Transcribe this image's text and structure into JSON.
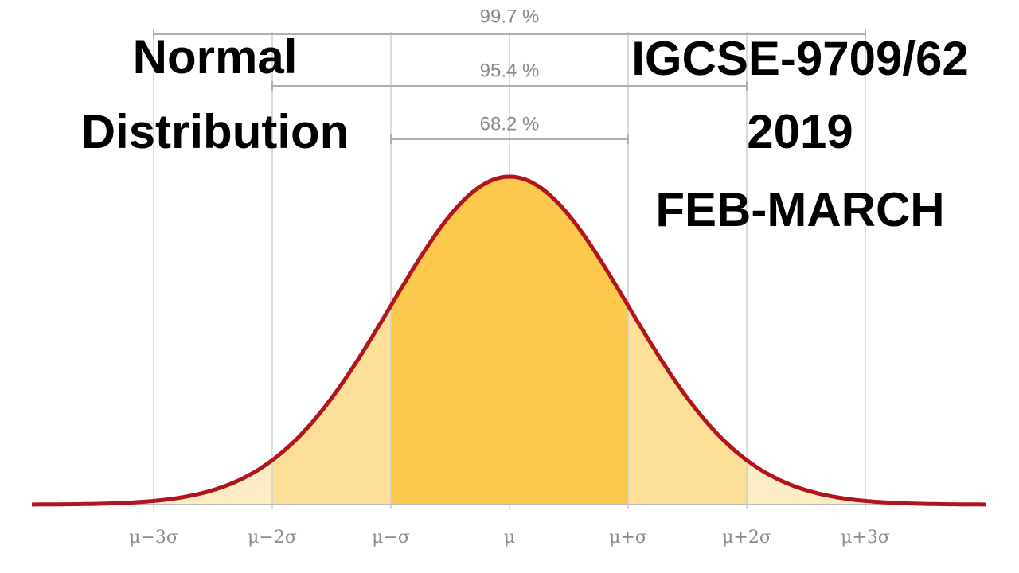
{
  "title": [
    "Normal",
    "Distribution"
  ],
  "subtitle": [
    "IGCSE-9709/62",
    "2019",
    "FEB-MARCH"
  ],
  "intervals": [
    "99.7 %",
    "95.4 %",
    "68.2 %"
  ],
  "axis_labels": [
    "μ−3σ",
    "μ−2σ",
    "μ−σ",
    "μ",
    "μ+σ",
    "μ+2σ",
    "μ+3σ"
  ]
}
